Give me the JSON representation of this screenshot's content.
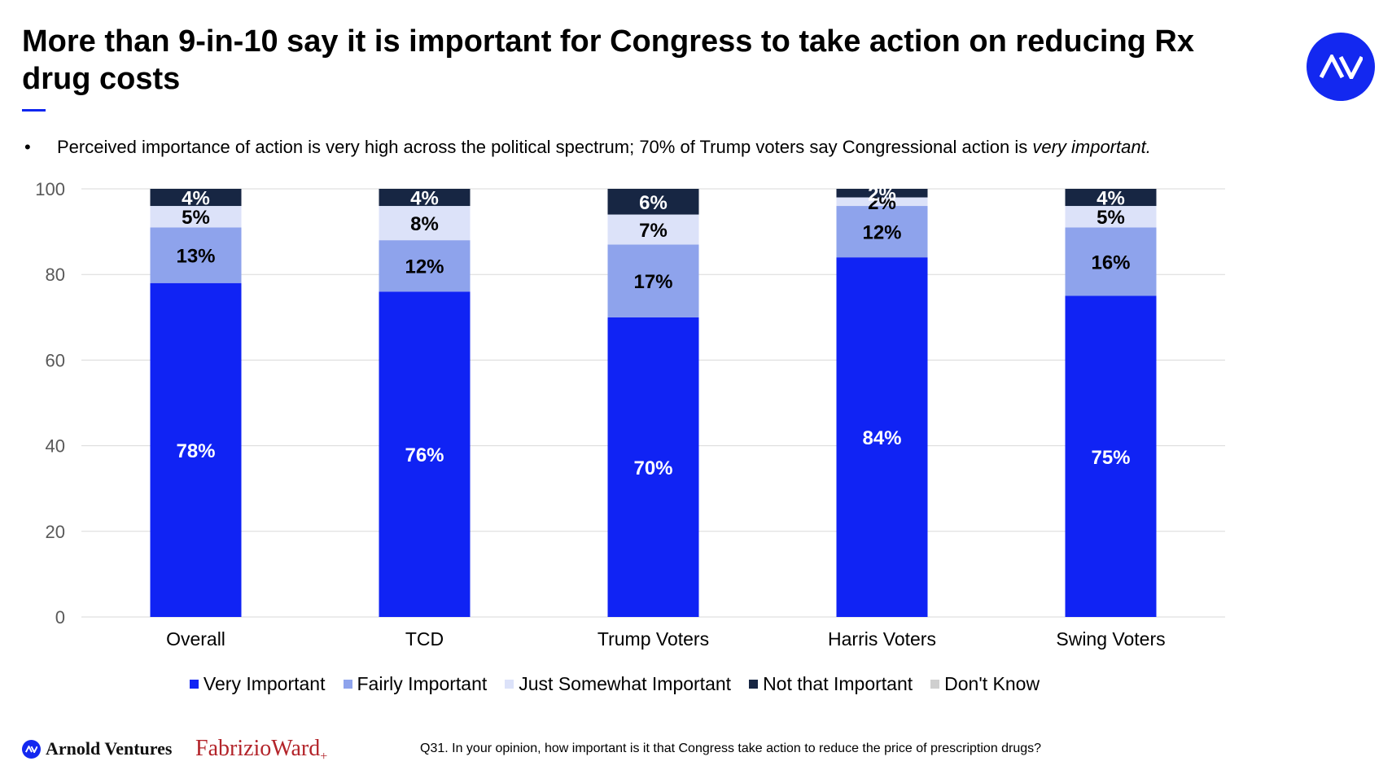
{
  "title": "More than 9-in-10 say it is important for Congress to take action on reducing Rx drug costs",
  "bullet": {
    "symbol": "•",
    "text_main": "Perceived importance of action is very high across the political spectrum; 70% of Trump voters say Congressional action is ",
    "text_emphasis": "very important."
  },
  "logo": {
    "icon": "arnold-ventures-av-icon",
    "text": "AV",
    "color": "#1328f0"
  },
  "chart_data": {
    "type": "bar",
    "stacked": true,
    "categories": [
      "Overall",
      "TCD",
      "Trump Voters",
      "Harris Voters",
      "Swing Voters"
    ],
    "series": [
      {
        "name": "Very Important",
        "color": "#1023f4",
        "label_color": "#ffffff",
        "values": [
          78,
          76,
          70,
          84,
          75
        ]
      },
      {
        "name": "Fairly Important",
        "color": "#8ea3ec",
        "label_color": "#000000",
        "values": [
          13,
          12,
          17,
          12,
          16
        ]
      },
      {
        "name": "Just Somewhat Important",
        "color": "#dce2f9",
        "label_color": "#000000",
        "values": [
          5,
          8,
          7,
          2,
          5
        ]
      },
      {
        "name": "Not that Important",
        "color": "#172643",
        "label_color": "#ffffff",
        "values": [
          4,
          4,
          6,
          2,
          4
        ]
      },
      {
        "name": "Don't Know",
        "color": "#cfcfcf",
        "label_color": "#000000",
        "values": [
          0,
          0,
          0,
          0,
          0
        ]
      }
    ],
    "ylim": [
      0,
      100
    ],
    "yticks": [
      0,
      20,
      40,
      60,
      80,
      100
    ],
    "grid": true,
    "legend_position": "bottom",
    "value_suffix": "%"
  },
  "footer": {
    "logo_arnold_text": "Arnold Ventures",
    "logo_fw_text": "FabrizioWard",
    "logo_fw_mark": "+",
    "question": "Q31. In your opinion, how important is it that Congress take action to reduce the price of prescription drugs?"
  }
}
